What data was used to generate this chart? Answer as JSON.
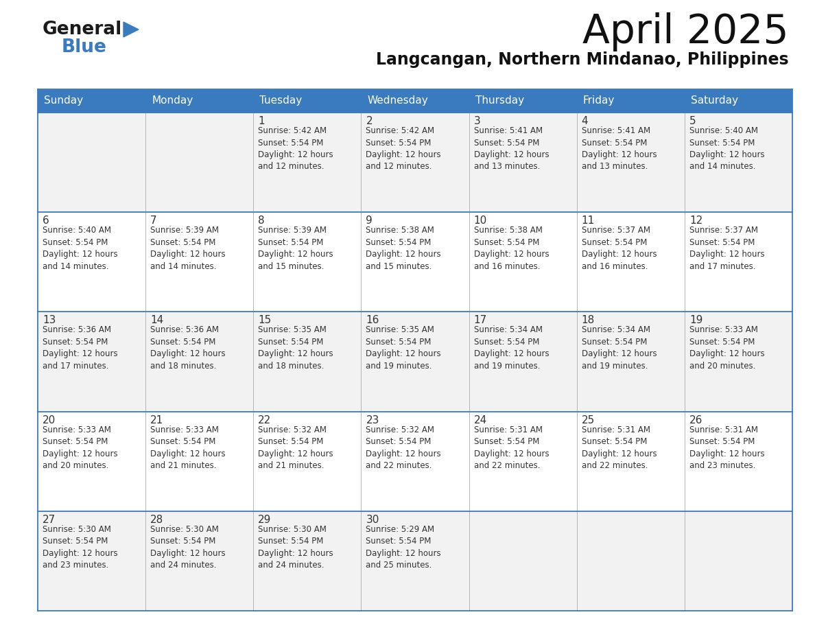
{
  "title": "April 2025",
  "subtitle": "Langcangan, Northern Mindanao, Philippines",
  "header_bg": "#3a7bbf",
  "header_text": "#ffffff",
  "cell_bg_light": "#f2f2f2",
  "cell_bg_white": "#ffffff",
  "border_color": "#3a7bbf",
  "inner_line_color": "#aaaaaa",
  "days_of_week": [
    "Sunday",
    "Monday",
    "Tuesday",
    "Wednesday",
    "Thursday",
    "Friday",
    "Saturday"
  ],
  "calendar": [
    [
      {
        "day": "",
        "text": ""
      },
      {
        "day": "",
        "text": ""
      },
      {
        "day": "1",
        "text": "Sunrise: 5:42 AM\nSunset: 5:54 PM\nDaylight: 12 hours\nand 12 minutes."
      },
      {
        "day": "2",
        "text": "Sunrise: 5:42 AM\nSunset: 5:54 PM\nDaylight: 12 hours\nand 12 minutes."
      },
      {
        "day": "3",
        "text": "Sunrise: 5:41 AM\nSunset: 5:54 PM\nDaylight: 12 hours\nand 13 minutes."
      },
      {
        "day": "4",
        "text": "Sunrise: 5:41 AM\nSunset: 5:54 PM\nDaylight: 12 hours\nand 13 minutes."
      },
      {
        "day": "5",
        "text": "Sunrise: 5:40 AM\nSunset: 5:54 PM\nDaylight: 12 hours\nand 14 minutes."
      }
    ],
    [
      {
        "day": "6",
        "text": "Sunrise: 5:40 AM\nSunset: 5:54 PM\nDaylight: 12 hours\nand 14 minutes."
      },
      {
        "day": "7",
        "text": "Sunrise: 5:39 AM\nSunset: 5:54 PM\nDaylight: 12 hours\nand 14 minutes."
      },
      {
        "day": "8",
        "text": "Sunrise: 5:39 AM\nSunset: 5:54 PM\nDaylight: 12 hours\nand 15 minutes."
      },
      {
        "day": "9",
        "text": "Sunrise: 5:38 AM\nSunset: 5:54 PM\nDaylight: 12 hours\nand 15 minutes."
      },
      {
        "day": "10",
        "text": "Sunrise: 5:38 AM\nSunset: 5:54 PM\nDaylight: 12 hours\nand 16 minutes."
      },
      {
        "day": "11",
        "text": "Sunrise: 5:37 AM\nSunset: 5:54 PM\nDaylight: 12 hours\nand 16 minutes."
      },
      {
        "day": "12",
        "text": "Sunrise: 5:37 AM\nSunset: 5:54 PM\nDaylight: 12 hours\nand 17 minutes."
      }
    ],
    [
      {
        "day": "13",
        "text": "Sunrise: 5:36 AM\nSunset: 5:54 PM\nDaylight: 12 hours\nand 17 minutes."
      },
      {
        "day": "14",
        "text": "Sunrise: 5:36 AM\nSunset: 5:54 PM\nDaylight: 12 hours\nand 18 minutes."
      },
      {
        "day": "15",
        "text": "Sunrise: 5:35 AM\nSunset: 5:54 PM\nDaylight: 12 hours\nand 18 minutes."
      },
      {
        "day": "16",
        "text": "Sunrise: 5:35 AM\nSunset: 5:54 PM\nDaylight: 12 hours\nand 19 minutes."
      },
      {
        "day": "17",
        "text": "Sunrise: 5:34 AM\nSunset: 5:54 PM\nDaylight: 12 hours\nand 19 minutes."
      },
      {
        "day": "18",
        "text": "Sunrise: 5:34 AM\nSunset: 5:54 PM\nDaylight: 12 hours\nand 19 minutes."
      },
      {
        "day": "19",
        "text": "Sunrise: 5:33 AM\nSunset: 5:54 PM\nDaylight: 12 hours\nand 20 minutes."
      }
    ],
    [
      {
        "day": "20",
        "text": "Sunrise: 5:33 AM\nSunset: 5:54 PM\nDaylight: 12 hours\nand 20 minutes."
      },
      {
        "day": "21",
        "text": "Sunrise: 5:33 AM\nSunset: 5:54 PM\nDaylight: 12 hours\nand 21 minutes."
      },
      {
        "day": "22",
        "text": "Sunrise: 5:32 AM\nSunset: 5:54 PM\nDaylight: 12 hours\nand 21 minutes."
      },
      {
        "day": "23",
        "text": "Sunrise: 5:32 AM\nSunset: 5:54 PM\nDaylight: 12 hours\nand 22 minutes."
      },
      {
        "day": "24",
        "text": "Sunrise: 5:31 AM\nSunset: 5:54 PM\nDaylight: 12 hours\nand 22 minutes."
      },
      {
        "day": "25",
        "text": "Sunrise: 5:31 AM\nSunset: 5:54 PM\nDaylight: 12 hours\nand 22 minutes."
      },
      {
        "day": "26",
        "text": "Sunrise: 5:31 AM\nSunset: 5:54 PM\nDaylight: 12 hours\nand 23 minutes."
      }
    ],
    [
      {
        "day": "27",
        "text": "Sunrise: 5:30 AM\nSunset: 5:54 PM\nDaylight: 12 hours\nand 23 minutes."
      },
      {
        "day": "28",
        "text": "Sunrise: 5:30 AM\nSunset: 5:54 PM\nDaylight: 12 hours\nand 24 minutes."
      },
      {
        "day": "29",
        "text": "Sunrise: 5:30 AM\nSunset: 5:54 PM\nDaylight: 12 hours\nand 24 minutes."
      },
      {
        "day": "30",
        "text": "Sunrise: 5:29 AM\nSunset: 5:54 PM\nDaylight: 12 hours\nand 25 minutes."
      },
      {
        "day": "",
        "text": ""
      },
      {
        "day": "",
        "text": ""
      },
      {
        "day": "",
        "text": ""
      }
    ]
  ],
  "logo_general_color": "#1a1a1a",
  "logo_blue_color": "#3a7bbf",
  "cell_text_color": "#333333",
  "day_num_color": "#333333",
  "title_fontsize": 42,
  "subtitle_fontsize": 17,
  "header_fontsize": 11,
  "day_num_fontsize": 11,
  "cell_text_fontsize": 8.5
}
